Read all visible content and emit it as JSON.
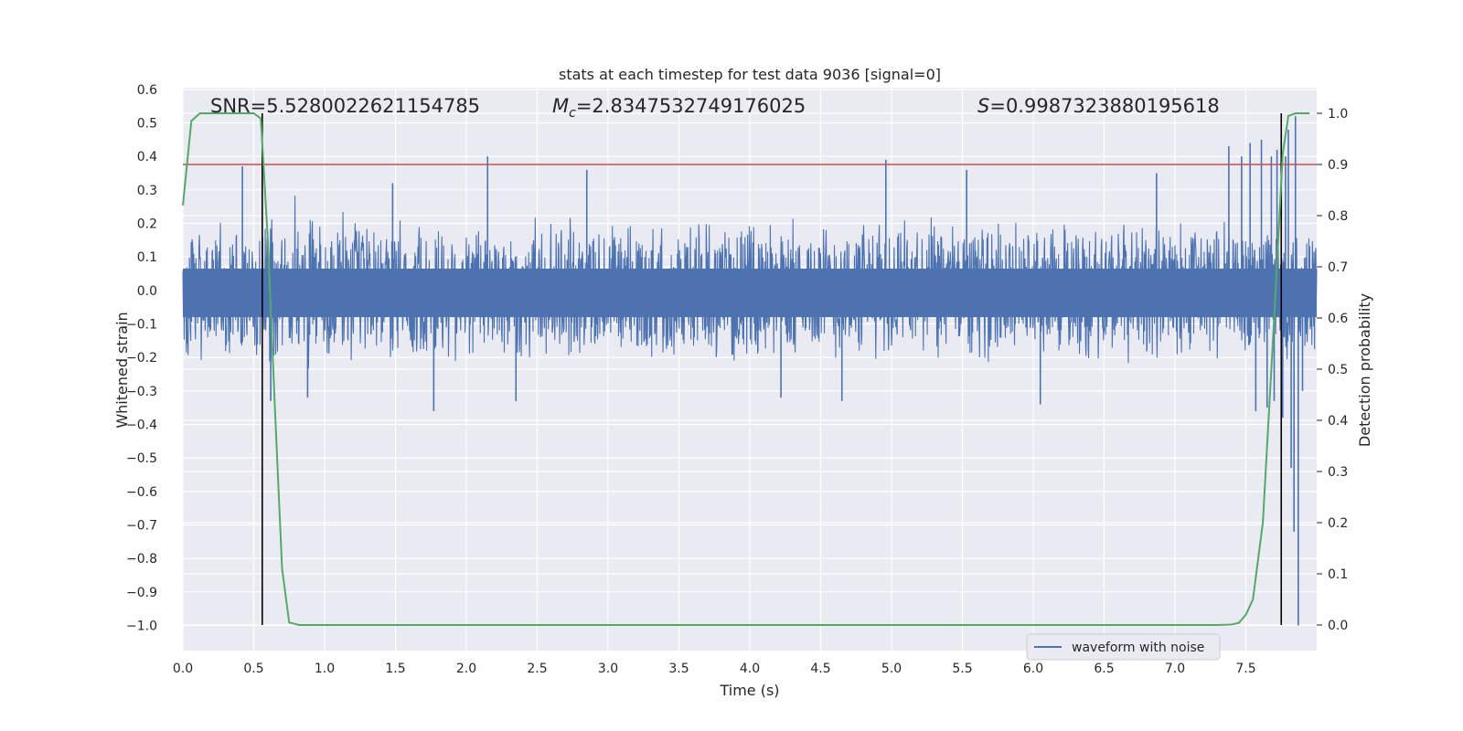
{
  "chart_data": {
    "type": "line",
    "title": "stats at each timestep for test data 9036 [signal=0]",
    "xlabel": "Time (s)",
    "ylabel": "Whitened strain",
    "y2label": "Detection probability",
    "xlim": [
      0.0,
      8.0
    ],
    "ylim": [
      -1.075,
      0.605
    ],
    "y2lim": [
      -0.05,
      1.05
    ],
    "xticks": [
      0.0,
      0.5,
      1.0,
      1.5,
      2.0,
      2.5,
      3.0,
      3.5,
      4.0,
      4.5,
      5.0,
      5.5,
      6.0,
      6.5,
      7.0,
      7.5
    ],
    "xtick_labels": [
      "0.0",
      "0.5",
      "1.0",
      "1.5",
      "2.0",
      "2.5",
      "3.0",
      "3.5",
      "4.0",
      "4.5",
      "5.0",
      "5.5",
      "6.0",
      "6.5",
      "7.0",
      "7.5"
    ],
    "yticks": [
      0.6,
      0.5,
      0.4,
      0.3,
      0.2,
      0.1,
      0.0,
      -0.1,
      -0.2,
      -0.3,
      -0.4,
      -0.5,
      -0.6,
      -0.7,
      -0.8,
      -0.9,
      -1.0
    ],
    "ytick_labels": [
      "0.6",
      "0.5",
      "0.4",
      "0.3",
      "0.2",
      "0.1",
      "0.0",
      "−0.1",
      "−0.2",
      "−0.3",
      "−0.4",
      "−0.5",
      "−0.6",
      "−0.7",
      "−0.8",
      "−0.9",
      "−1.0"
    ],
    "y2ticks": [
      1.0,
      0.9,
      0.8,
      0.7,
      0.6,
      0.5,
      0.4,
      0.3,
      0.2,
      0.1,
      0.0
    ],
    "y2tick_labels": [
      "1.0",
      "0.9",
      "0.8",
      "0.7",
      "0.6",
      "0.5",
      "0.4",
      "0.3",
      "0.2",
      "0.1",
      "0.0"
    ],
    "annotations": {
      "snr": "SNR=5.5280022621154785",
      "mc_symbol": "M",
      "mc_sub": "c",
      "mc_value": "=2.8347532749176025",
      "s_symbol": "S",
      "s_value": "=0.9987323880195618"
    },
    "grid": true,
    "legend": {
      "placement": "lower-right",
      "entries": [
        "waveform with noise"
      ]
    },
    "colors": {
      "background": "#eaeaf2",
      "grid": "#ffffff",
      "waveform": "#4c72b0",
      "probability": "#55a868",
      "threshold": "#c44e52",
      "marker": "#000000"
    },
    "waveform": {
      "name": "waveform with noise",
      "duration_s": 8.0,
      "envelope": 0.22,
      "peaks": [
        {
          "x": 0.42,
          "y": 0.37
        },
        {
          "x": 0.62,
          "y": -0.33
        },
        {
          "x": 0.88,
          "y": -0.32
        },
        {
          "x": 1.48,
          "y": 0.32
        },
        {
          "x": 1.77,
          "y": -0.36
        },
        {
          "x": 2.15,
          "y": 0.4
        },
        {
          "x": 2.35,
          "y": -0.33
        },
        {
          "x": 2.85,
          "y": 0.36
        },
        {
          "x": 4.22,
          "y": -0.32
        },
        {
          "x": 4.65,
          "y": -0.33
        },
        {
          "x": 4.96,
          "y": 0.39
        },
        {
          "x": 5.53,
          "y": 0.36
        },
        {
          "x": 6.05,
          "y": -0.34
        },
        {
          "x": 6.87,
          "y": 0.35
        },
        {
          "x": 7.38,
          "y": 0.43
        },
        {
          "x": 7.47,
          "y": 0.4
        },
        {
          "x": 7.53,
          "y": 0.44
        },
        {
          "x": 7.61,
          "y": 0.45
        },
        {
          "x": 7.68,
          "y": 0.4
        },
        {
          "x": 7.72,
          "y": 0.42
        },
        {
          "x": 7.78,
          "y": 0.4
        },
        {
          "x": 7.8,
          "y": 0.48
        },
        {
          "x": 7.85,
          "y": 0.52
        },
        {
          "x": 7.65,
          "y": -0.35
        },
        {
          "x": 7.7,
          "y": -0.33
        },
        {
          "x": 7.76,
          "y": -0.38
        },
        {
          "x": 7.82,
          "y": -0.53
        },
        {
          "x": 7.57,
          "y": -0.36
        },
        {
          "x": 7.87,
          "y": -1.0
        },
        {
          "x": 7.84,
          "y": -0.72
        },
        {
          "x": 7.9,
          "y": -0.3
        }
      ]
    },
    "detection_probability": {
      "x": [
        0.0,
        0.06,
        0.12,
        0.18,
        0.3,
        0.42,
        0.5,
        0.55,
        0.6,
        0.65,
        0.7,
        0.75,
        0.82,
        1.0,
        7.0,
        7.3,
        7.4,
        7.45,
        7.5,
        7.55,
        7.62,
        7.7,
        7.76,
        7.8,
        7.85,
        7.9,
        7.95
      ],
      "y": [
        0.82,
        0.985,
        1.0,
        1.0,
        1.0,
        1.0,
        1.0,
        0.99,
        0.75,
        0.42,
        0.11,
        0.005,
        0.0,
        0.0,
        0.0,
        0.0,
        0.001,
        0.004,
        0.02,
        0.05,
        0.2,
        0.6,
        0.92,
        0.995,
        1.0,
        1.0,
        1.0
      ]
    },
    "threshold_line": {
      "y2": 0.9
    },
    "vertical_markers_x": [
      0.56,
      7.75
    ]
  }
}
